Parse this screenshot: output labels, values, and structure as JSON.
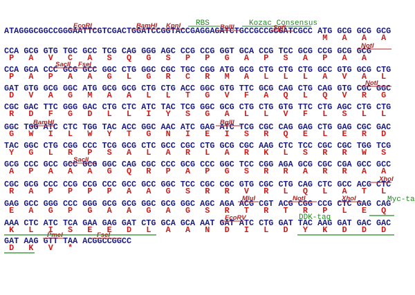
{
  "lines": [
    {
      "annotations": [
        "EcoRI",
        "BamHI",
        "KpnI",
        "RBS",
        "BglII",
        "Kozac Consensus",
        "SgfI"
      ],
      "sequence": "ATAGGGCGGCCGGGAATTCGTCGACTGGATCCGGTACCGAGGAGATCTGCCGCCGCGATCGCC ATG GCG GCG GCG",
      "protein": [
        "M",
        "A",
        "A",
        "A"
      ]
    },
    {
      "annotations": [
        "NotI"
      ],
      "sequence": "CCA GCG GTG TGC GCC TCG CAG GGG AGC CCG CCG GGT GCA CCG TCC GCG CCG GCG GCG",
      "protein": [
        "P",
        "A",
        "V",
        "C",
        "A",
        "S",
        "Q",
        "G",
        "S",
        "P",
        "P",
        "G",
        "A",
        "P",
        "S",
        "A",
        "P",
        "A",
        "A"
      ]
    },
    {
      "annotations": [
        "SacII",
        "FseI"
      ],
      "sequence": "CCA GCA CCC GCG GCC GGC CTG GGC CGC TGC CGG ATG GCG CTG CTG CTG GCC GTG GCG CTG",
      "protein": [
        "P",
        "A",
        "P",
        "A",
        "A",
        "G",
        "L",
        "G",
        "R",
        "C",
        "R",
        "M",
        "A",
        "L",
        "L",
        "L",
        "A",
        "V",
        "A",
        "L"
      ]
    },
    {
      "annotations": [
        "NotI"
      ],
      "sequence": "GAT GTG GCG GGC ATG GCG GCG CTG CTG ACC GGC GTG TTC GCG CAG CTG CAG GTG CGC GGC",
      "protein": [
        "D",
        "V",
        "A",
        "G",
        "M",
        "A",
        "A",
        "L",
        "L",
        "T",
        "G",
        "V",
        "F",
        "A",
        "Q",
        "L",
        "Q",
        "V",
        "R",
        "G"
      ]
    },
    {
      "annotations": [],
      "sequence": "CGC GAC TTC GGG GAC CTG CTC ATC TAC TCG GGC GCG CTG CTG GTG TTC CTG AGC CTG CTG",
      "protein": [
        "R",
        "D",
        "F",
        "G",
        "D",
        "L",
        "L",
        "I",
        "Y",
        "S",
        "G",
        "A",
        "L",
        "L",
        "V",
        "F",
        "L",
        "S",
        "L",
        "L"
      ]
    },
    {
      "annotations": [
        "BamHI",
        "BglII"
      ],
      "sequence": "GGC TGG ATC CTC TGG TAC ACC GGC AAC ATC GAG ATC TCG CGC CAG GAG CTG GAG CGC GAC",
      "protein": [
        "G",
        "W",
        "I",
        "L",
        "W",
        "Y",
        "T",
        "G",
        "N",
        "I",
        "E",
        "I",
        "S",
        "R",
        "Q",
        "E",
        "L",
        "E",
        "R",
        "D"
      ]
    },
    {
      "annotations": [],
      "sequence": "TAC GGC CTG CGG CCC TCG GCG CTC GCC CGC CTG GCG CGC AAG CTC TCC CGC CGC TGG TCG",
      "protein": [
        "Y",
        "G",
        "L",
        "R",
        "P",
        "S",
        "A",
        "L",
        "A",
        "R",
        "L",
        "A",
        "R",
        "K",
        "L",
        "S",
        "R",
        "R",
        "W",
        "S"
      ]
    },
    {
      "annotations": [
        "SacII"
      ],
      "sequence": "GCG CCC GCC GCC GCG GGC CAG CGC CCC GCG CCC GGC TCC CGG AGA GCG CGC CGA GCC GCC",
      "protein": [
        "A",
        "P",
        "A",
        "A",
        "A",
        "G",
        "Q",
        "R",
        "P",
        "A",
        "P",
        "G",
        "S",
        "R",
        "R",
        "A",
        "R",
        "R",
        "A",
        "A"
      ]
    },
    {
      "annotations": [
        "XhoI"
      ],
      "sequence": "CGC GCG CCC CCG CCG CCC GCC GCC GGC TCC CGC CGC GTG CGC CTG CAG CTC GCC ACG CTC",
      "protein": [
        "R",
        "A",
        "P",
        "P",
        "P",
        "P",
        "A",
        "A",
        "G",
        "S",
        "R",
        "R",
        "V",
        "R",
        "L",
        "Q",
        "L",
        "A",
        "T",
        "L"
      ]
    },
    {
      "annotations": [
        "MluI",
        "NotI",
        "XhoI",
        "Myc-tag"
      ],
      "sequence": "GAG GCC GGG CCC GGG GCG GCG GGC GCG GGC AGC AGA ACG CGT ACG CGG CCG CTC GAG CAG",
      "protein": [
        "E",
        "A",
        "G",
        "P",
        "G",
        "A",
        "A",
        "G",
        "A",
        "G",
        "S",
        "R",
        "T",
        "R",
        "T",
        "R",
        "P",
        "L",
        "E",
        "Q"
      ]
    },
    {
      "annotations": [
        "EcoRV",
        "DDK-tag"
      ],
      "sequence": "AAA CTC ATC TCA GAA GAG GAT CTG GCA GCA AAT GAT ATC CTG GAT TAC AAG GAT GAC GAC",
      "protein": [
        "K",
        "L",
        "I",
        "S",
        "E",
        "E",
        "D",
        "L",
        "A",
        "A",
        "N",
        "D",
        "I",
        "L",
        "D",
        "Y",
        "K",
        "D",
        "D",
        "D"
      ]
    },
    {
      "annotations": [
        "PmeI",
        "FseI"
      ],
      "sequence": "GAT AAG GTT TAA ACGGCCGGCC",
      "protein": [
        "D",
        "K",
        "V",
        "*"
      ]
    }
  ]
}
